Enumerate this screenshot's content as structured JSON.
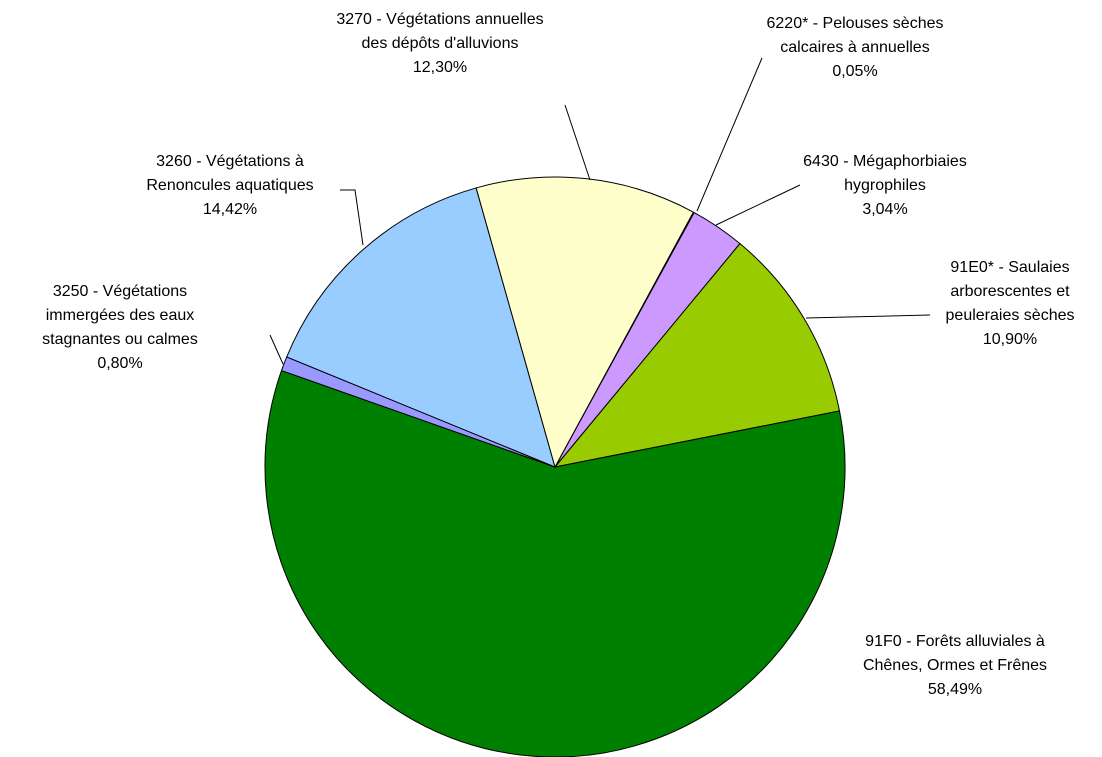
{
  "chart_data": {
    "type": "pie",
    "categories": [
      "6220* - Pelouses sèches calcaires à annuelles",
      "6430 - Mégaphorbiaies hygrophiles",
      "91E0* - Saulaies arborescentes et peuleraies sèches",
      "91F0 - Forêts alluviales à Chênes, Ormes et Frênes",
      "3250 - Végétations immergées des eaux stagnantes ou calmes",
      "3260 - Végétations à Renoncules aquatiques",
      "3270 - Végétations annuelles des dépôts d'alluvions"
    ],
    "values": [
      0.05,
      3.04,
      10.9,
      58.49,
      0.8,
      14.42,
      12.3
    ],
    "value_labels": [
      "0,05%",
      "3,04%",
      "10,90%",
      "58,49%",
      "0,80%",
      "14,42%",
      "12,30%"
    ],
    "colors": [
      "#ffcc99",
      "#cc99ff",
      "#99cc00",
      "#008000",
      "#9999ff",
      "#99ccff",
      "#ffffcc"
    ]
  }
}
